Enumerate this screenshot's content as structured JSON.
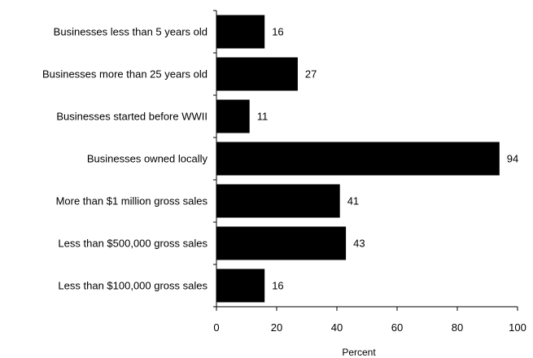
{
  "chart_data": {
    "type": "bar",
    "orientation": "horizontal",
    "categories": [
      "Businesses less than 5 years old",
      "Businesses more than 25 years old",
      "Businesses started before WWII",
      "Businesses owned locally",
      "More than $1 million gross sales",
      "Less than $500,000 gross sales",
      "Less than $100,000 gross sales"
    ],
    "values": [
      16,
      27,
      11,
      94,
      41,
      43,
      16
    ],
    "title": "",
    "xlabel": "Percent",
    "ylabel": "",
    "xlim": [
      0,
      100
    ],
    "xticks": [
      0,
      20,
      40,
      60,
      80,
      100
    ],
    "xtick_labels": [
      "0",
      "20",
      "40",
      "60",
      "80",
      "100"
    ],
    "bar_color": "#000000",
    "grid": false,
    "legend": "none",
    "data_labels": true
  }
}
